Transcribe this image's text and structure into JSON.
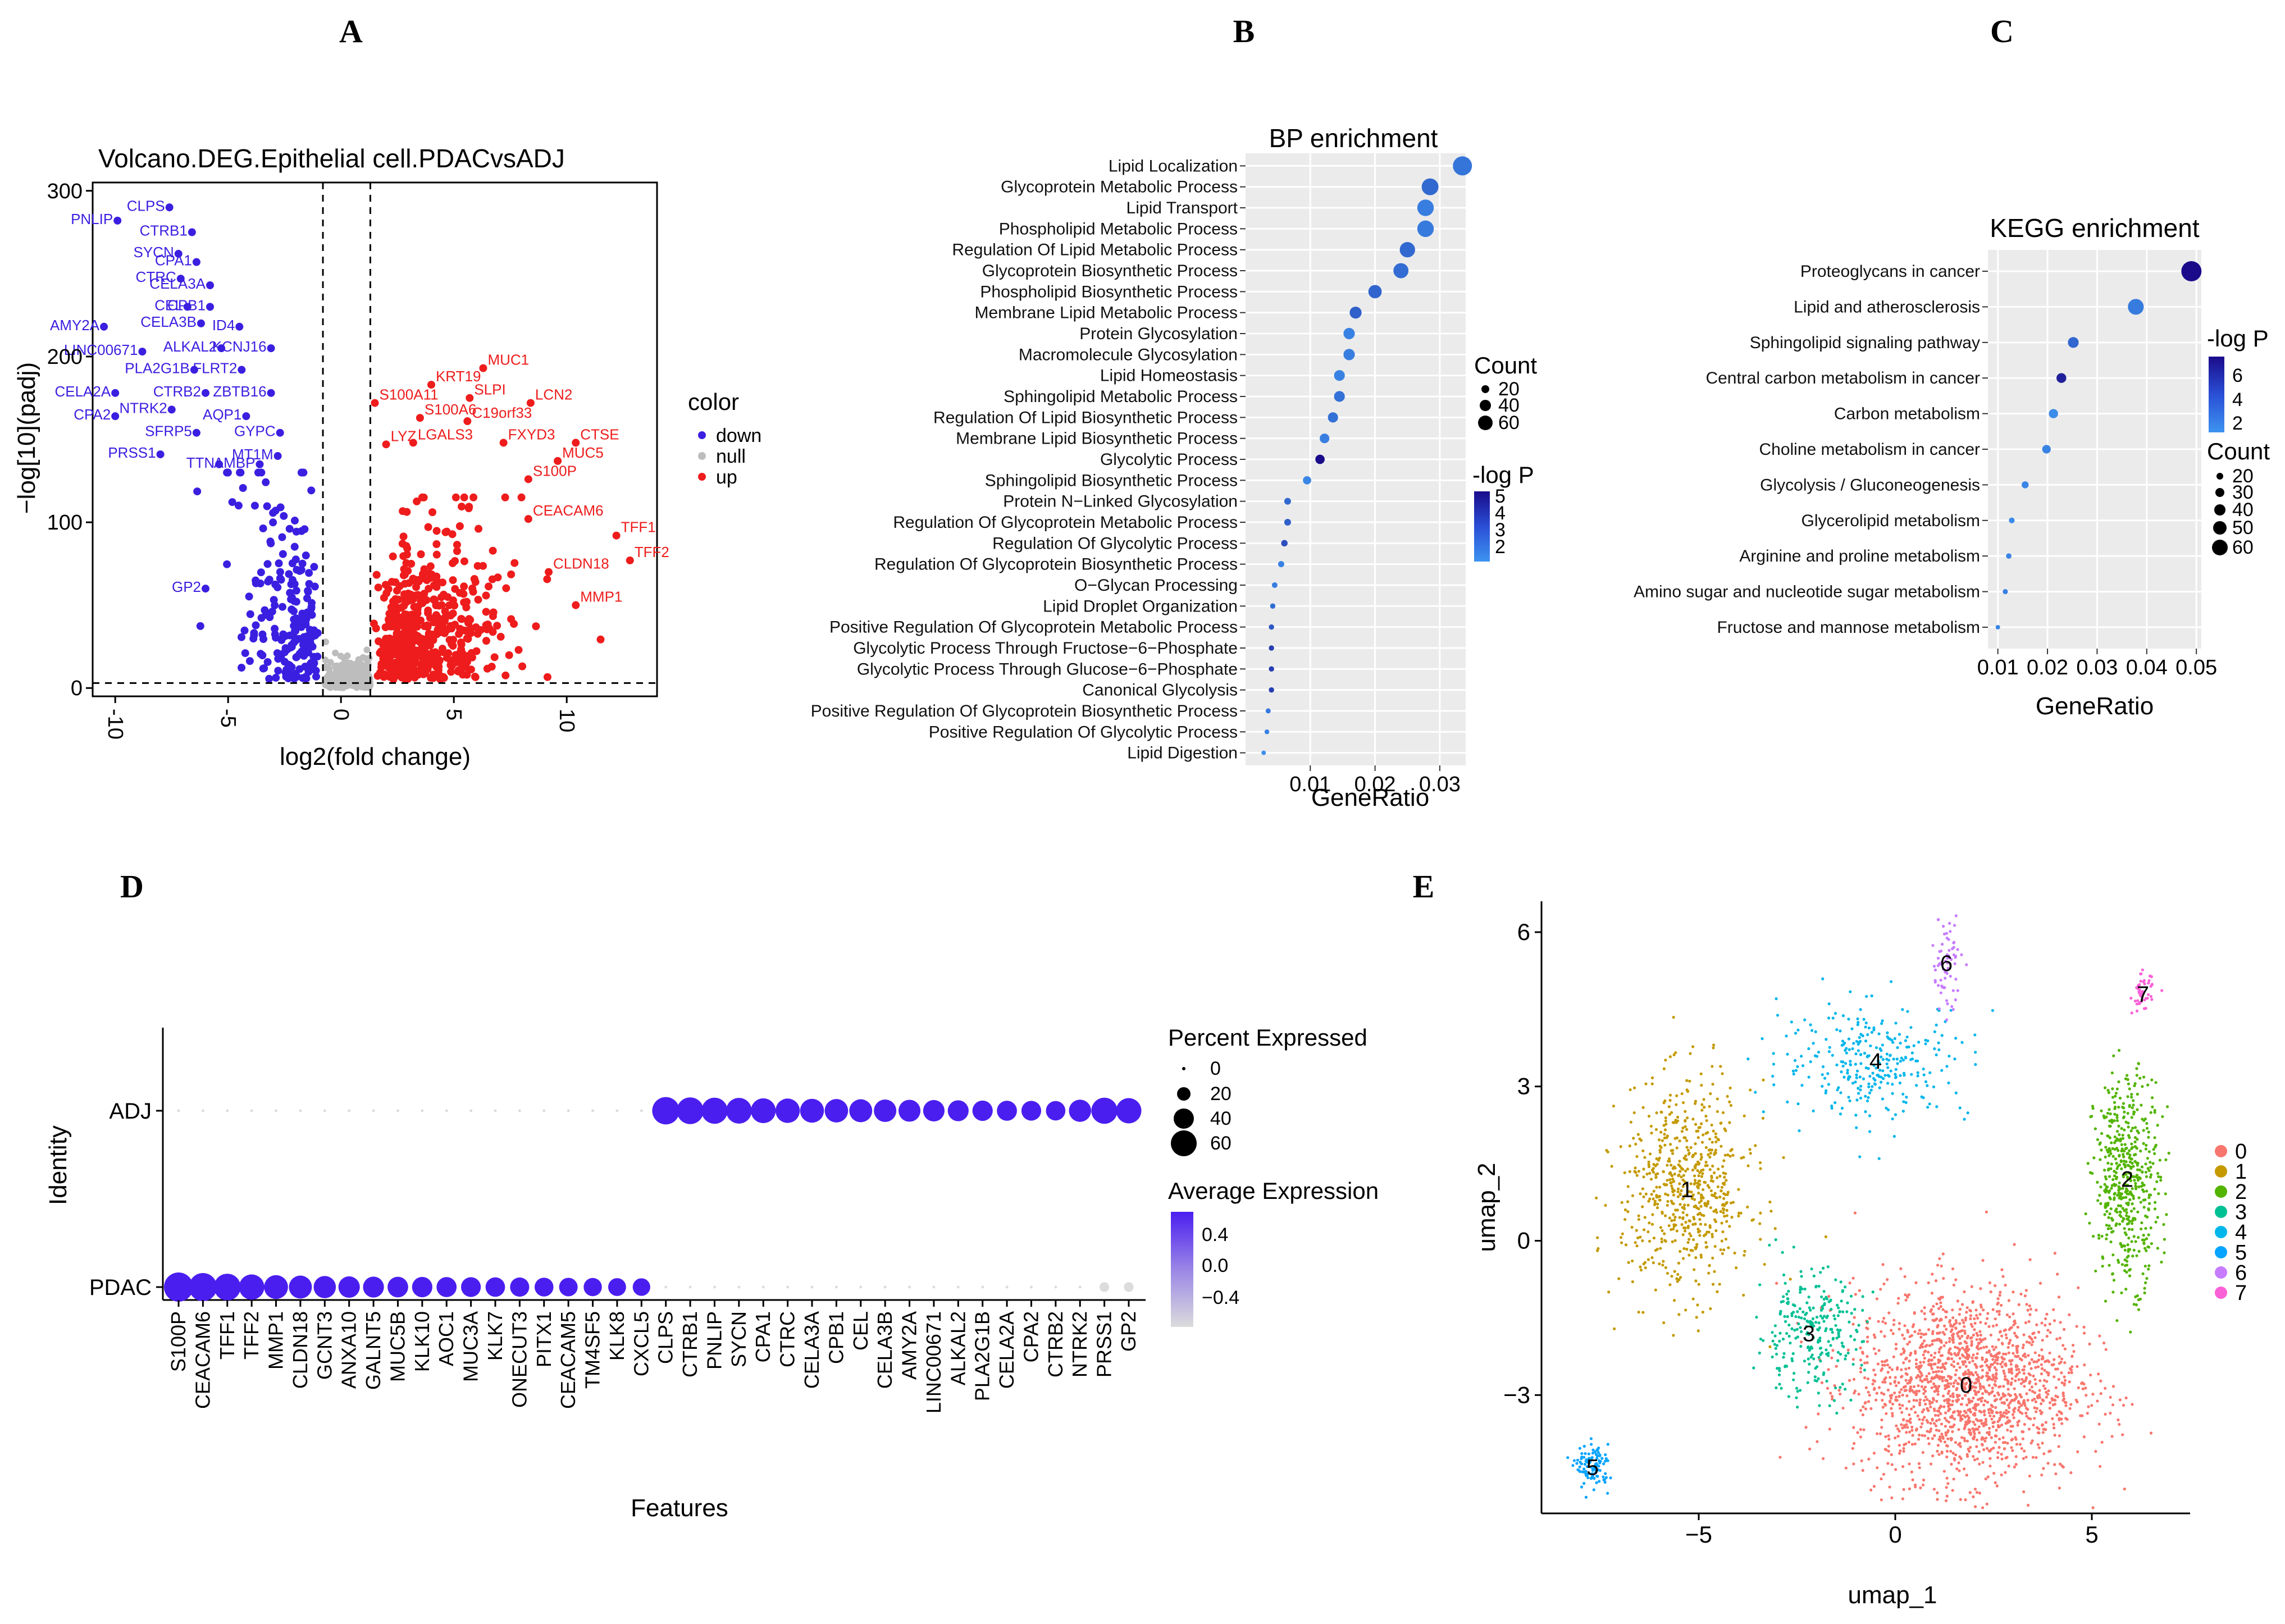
{
  "panels": {
    "A": {
      "letter": "A",
      "title": "Volcano.DEG.Epithelial cell.PDACvsADJ",
      "xlabel": "log2(fold change)",
      "ylabel": "−log[10](padj)",
      "legend_title": "color",
      "legend_items": [
        "down",
        "null",
        "up"
      ]
    },
    "B": {
      "letter": "B",
      "title": "BP enrichment",
      "xlabel": "GeneRatio",
      "count_title": "Count",
      "count_labels": [
        "20",
        "40",
        "60"
      ],
      "p_title": "-log P",
      "p_labels": [
        "5",
        "4",
        "3",
        "2"
      ]
    },
    "C": {
      "letter": "C",
      "title": "KEGG enrichment",
      "xlabel": "GeneRatio",
      "p_title": "-log P",
      "p_labels": [
        "6",
        "4",
        "2"
      ],
      "count_title": "Count",
      "count_labels": [
        "20",
        "30",
        "40",
        "50",
        "60"
      ]
    },
    "D": {
      "letter": "D",
      "xlabel": "Features",
      "ylabel": "Identity",
      "pct_title": "Percent Expressed",
      "pct_labels": [
        "0",
        "20",
        "40",
        "60"
      ],
      "avg_title": "Average Expression",
      "avg_labels": [
        "0.4",
        "0.0",
        "−0.4"
      ]
    },
    "E": {
      "letter": "E",
      "xlabel": "umap_1",
      "ylabel": "umap_2"
    }
  },
  "chart_data": [
    {
      "id": "A",
      "type": "scatter",
      "title": "Volcano.DEG.Epithelial cell.PDACvsADJ",
      "xlabel": "log2(fold change)",
      "ylabel": "−log[10](padj)",
      "xlim": [
        -11,
        14
      ],
      "ylim": [
        -5,
        305
      ],
      "xticks": [
        -10,
        -5,
        0,
        5,
        10
      ],
      "yticks": [
        0,
        100,
        200,
        300
      ],
      "thresholds": {
        "x": [
          -0.8,
          1.3
        ],
        "y": 3
      },
      "colors": {
        "down": "#3b1fe0",
        "null": "#bdbdbd",
        "up": "#ee1c1c"
      },
      "labeled_down": [
        {
          "gene": "CLPS",
          "x": -7.6,
          "y": 290
        },
        {
          "gene": "PNLIP",
          "x": -9.9,
          "y": 282
        },
        {
          "gene": "CTRB1",
          "x": -6.6,
          "y": 275
        },
        {
          "gene": "SYCN",
          "x": -7.2,
          "y": 262
        },
        {
          "gene": "CPA1",
          "x": -6.4,
          "y": 257
        },
        {
          "gene": "CTRC",
          "x": -7.1,
          "y": 247
        },
        {
          "gene": "CELA3A",
          "x": -5.8,
          "y": 243
        },
        {
          "gene": "CEL",
          "x": -6.8,
          "y": 230
        },
        {
          "gene": "CPB1",
          "x": -5.8,
          "y": 230
        },
        {
          "gene": "AMY2A",
          "x": -10.5,
          "y": 218
        },
        {
          "gene": "CELA3B",
          "x": -6.2,
          "y": 220
        },
        {
          "gene": "ID4",
          "x": -4.5,
          "y": 218
        },
        {
          "gene": "LINC00671",
          "x": -8.8,
          "y": 203
        },
        {
          "gene": "ALKAL2",
          "x": -5.3,
          "y": 205
        },
        {
          "gene": "KCNJ16",
          "x": -3.1,
          "y": 205
        },
        {
          "gene": "PLA2G1B",
          "x": -6.5,
          "y": 192
        },
        {
          "gene": "FLRT2",
          "x": -4.4,
          "y": 192
        },
        {
          "gene": "CELA2A",
          "x": -10.0,
          "y": 178
        },
        {
          "gene": "CTRB2",
          "x": -6.0,
          "y": 178
        },
        {
          "gene": "ZBTB16",
          "x": -3.1,
          "y": 178
        },
        {
          "gene": "CPA2",
          "x": -10.0,
          "y": 164
        },
        {
          "gene": "NTRK2",
          "x": -7.5,
          "y": 168
        },
        {
          "gene": "AQP1",
          "x": -4.2,
          "y": 164
        },
        {
          "gene": "GYPC",
          "x": -2.7,
          "y": 154
        },
        {
          "gene": "SFRP5",
          "x": -6.4,
          "y": 154
        },
        {
          "gene": "PRSS1",
          "x": -8.0,
          "y": 141
        },
        {
          "gene": "MT1M",
          "x": -2.8,
          "y": 140
        },
        {
          "gene": "TTN",
          "x": -5.4,
          "y": 135
        },
        {
          "gene": "AMBP",
          "x": -3.6,
          "y": 135
        },
        {
          "gene": "GP2",
          "x": -6.0,
          "y": 60
        }
      ],
      "labeled_up": [
        {
          "gene": "MUC1",
          "x": 6.3,
          "y": 193
        },
        {
          "gene": "KRT19",
          "x": 4.0,
          "y": 183
        },
        {
          "gene": "SLPI",
          "x": 5.7,
          "y": 175
        },
        {
          "gene": "LCN2",
          "x": 8.4,
          "y": 172
        },
        {
          "gene": "S100A11",
          "x": 1.5,
          "y": 172
        },
        {
          "gene": "S100A6",
          "x": 3.5,
          "y": 163
        },
        {
          "gene": "C19orf33",
          "x": 5.6,
          "y": 161
        },
        {
          "gene": "LGALS3",
          "x": 3.2,
          "y": 148
        },
        {
          "gene": "FXYD3",
          "x": 7.2,
          "y": 148
        },
        {
          "gene": "CTSE",
          "x": 10.4,
          "y": 148
        },
        {
          "gene": "LYZ",
          "x": 2.0,
          "y": 147
        },
        {
          "gene": "MUC5",
          "x": 9.6,
          "y": 137
        },
        {
          "gene": "S100P",
          "x": 8.3,
          "y": 126
        },
        {
          "gene": "CEACAM6",
          "x": 8.3,
          "y": 102
        },
        {
          "gene": "TFF1",
          "x": 12.2,
          "y": 92
        },
        {
          "gene": "TFF2",
          "x": 12.8,
          "y": 77
        },
        {
          "gene": "CLDN18",
          "x": 9.2,
          "y": 70
        },
        {
          "gene": "MMP1",
          "x": 10.4,
          "y": 50
        }
      ]
    },
    {
      "id": "B",
      "type": "scatter",
      "title": "BP enrichment",
      "xlabel": "GeneRatio",
      "xlim": [
        0.0,
        0.034
      ],
      "xticks": [
        0.01,
        0.02,
        0.03
      ],
      "terms": [
        "Lipid Localization",
        "Glycoprotein Metabolic Process",
        "Lipid Transport",
        "Phospholipid Metabolic Process",
        "Regulation Of Lipid Metabolic Process",
        "Glycoprotein Biosynthetic Process",
        "Phospholipid Biosynthetic Process",
        "Membrane Lipid Metabolic Process",
        "Protein Glycosylation",
        "Macromolecule Glycosylation",
        "Lipid Homeostasis",
        "Sphingolipid Metabolic Process",
        "Regulation Of Lipid Biosynthetic Process",
        "Membrane Lipid Biosynthetic Process",
        "Glycolytic Process",
        "Sphingolipid Biosynthetic Process",
        "Protein N−Linked Glycosylation",
        "Regulation Of Glycoprotein Metabolic Process",
        "Regulation Of Glycolytic Process",
        "Regulation Of Glycoprotein Biosynthetic Process",
        "O−Glycan Processing",
        "Lipid Droplet Organization",
        "Positive Regulation Of Glycoprotein Metabolic Process",
        "Glycolytic Process Through Fructose−6−Phosphate",
        "Glycolytic Process Through Glucose−6−Phosphate",
        "Canonical Glycolysis",
        "Positive Regulation Of Glycoprotein Biosynthetic Process",
        "Positive Regulation Of Glycolytic Process",
        "Lipid Digestion"
      ],
      "gene_ratio": [
        0.0335,
        0.0285,
        0.0278,
        0.0278,
        0.025,
        0.024,
        0.02,
        0.017,
        0.016,
        0.016,
        0.0145,
        0.0145,
        0.0135,
        0.0122,
        0.0115,
        0.0095,
        0.0065,
        0.0065,
        0.006,
        0.0055,
        0.0045,
        0.0042,
        0.004,
        0.004,
        0.004,
        0.004,
        0.0035,
        0.0033,
        0.0028
      ],
      "count": [
        58,
        50,
        49,
        49,
        45,
        44,
        38,
        33,
        31,
        31,
        29,
        29,
        27,
        25,
        24,
        20,
        15,
        15,
        14,
        13,
        11,
        10,
        10,
        10,
        10,
        10,
        9,
        8,
        7
      ],
      "neg_log_p": [
        2.7,
        3.0,
        2.5,
        2.6,
        3.0,
        2.9,
        3.1,
        3.2,
        2.4,
        2.5,
        2.4,
        2.8,
        2.8,
        2.5,
        5.2,
        2.3,
        3.0,
        3.2,
        3.6,
        2.4,
        2.5,
        2.9,
        3.4,
        4.0,
        4.0,
        4.0,
        2.6,
        2.4,
        2.1
      ]
    },
    {
      "id": "C",
      "type": "scatter",
      "title": "KEGG enrichment",
      "xlabel": "GeneRatio",
      "xlim": [
        0.008,
        0.051
      ],
      "xticks": [
        0.01,
        0.02,
        0.03,
        0.04,
        0.05
      ],
      "terms": [
        "Proteoglycans in cancer",
        "Lipid and atherosclerosis",
        "Sphingolipid signaling pathway",
        "Central carbon metabolism in cancer",
        "Carbon metabolism",
        "Choline metabolism in cancer",
        "Glycolysis / Gluconeogenesis",
        "Glycerolipid metabolism",
        "Arginine and proline metabolism",
        "Amino sugar and nucleotide sugar metabolism",
        "Fructose and mannose metabolism"
      ],
      "gene_ratio": [
        0.049,
        0.0378,
        0.0252,
        0.0228,
        0.0212,
        0.0198,
        0.0155,
        0.0128,
        0.0122,
        0.0115,
        0.01
      ],
      "count": [
        62,
        48,
        32,
        29,
        27,
        25,
        20,
        16,
        15,
        14,
        12
      ],
      "neg_log_p": [
        7.0,
        2.9,
        3.6,
        6.2,
        2.3,
        2.6,
        2.5,
        2.3,
        2.6,
        2.7,
        2.5
      ]
    },
    {
      "id": "D",
      "type": "scatter",
      "xlabel": "Features",
      "ylabel": "Identity",
      "identities": [
        "ADJ",
        "PDAC"
      ],
      "features": [
        "S100P",
        "CEACAM6",
        "TFF1",
        "TFF2",
        "MMP1",
        "CLDN18",
        "GCNT3",
        "ANXA10",
        "GALNT5",
        "MUC5B",
        "KLK10",
        "AOC1",
        "MUC3A",
        "KLK7",
        "ONECUT3",
        "PITX1",
        "CEACAM5",
        "TM4SF5",
        "KLK8",
        "CXCL5",
        "CLPS",
        "CTRB1",
        "PNLIP",
        "SYCN",
        "CPA1",
        "CTRC",
        "CELA3A",
        "CPB1",
        "CEL",
        "CELA3B",
        "AMY2A",
        "LINC00671",
        "ALKAL2",
        "PLA2G1B",
        "CELA2A",
        "CPA2",
        "CTRB2",
        "NTRK2",
        "PRSS1",
        "GP2"
      ],
      "series": [
        {
          "name": "ADJ",
          "pct": [
            1,
            1,
            1,
            1,
            1,
            1,
            1,
            1,
            1,
            1,
            1,
            1,
            1,
            1,
            1,
            1,
            1,
            1,
            1,
            1,
            58,
            55,
            52,
            50,
            46,
            44,
            42,
            40,
            38,
            36,
            34,
            32,
            30,
            28,
            27,
            26,
            25,
            35,
            52,
            48
          ],
          "avg": [
            -0.55,
            -0.55,
            -0.55,
            -0.55,
            -0.55,
            -0.55,
            -0.55,
            -0.55,
            -0.55,
            -0.55,
            -0.55,
            -0.55,
            -0.55,
            -0.55,
            -0.55,
            -0.55,
            -0.55,
            -0.55,
            -0.55,
            -0.55,
            0.5,
            0.5,
            0.5,
            0.5,
            0.5,
            0.5,
            0.5,
            0.5,
            0.5,
            0.5,
            0.5,
            0.5,
            0.5,
            0.5,
            0.5,
            0.5,
            0.5,
            0.5,
            0.5,
            0.5
          ]
        },
        {
          "name": "PDAC",
          "pct": [
            68,
            62,
            55,
            48,
            42,
            38,
            35,
            32,
            30,
            29,
            28,
            27,
            26,
            25,
            24,
            23,
            22,
            21,
            20,
            19,
            1,
            1,
            1,
            1,
            1,
            1,
            1,
            1,
            1,
            1,
            1,
            1,
            1,
            1,
            1,
            1,
            1,
            1,
            3,
            3
          ],
          "avg": [
            0.5,
            0.5,
            0.5,
            0.5,
            0.5,
            0.5,
            0.5,
            0.5,
            0.5,
            0.5,
            0.5,
            0.5,
            0.5,
            0.5,
            0.5,
            0.5,
            0.5,
            0.5,
            0.5,
            0.5,
            -0.55,
            -0.55,
            -0.55,
            -0.55,
            -0.55,
            -0.55,
            -0.55,
            -0.55,
            -0.55,
            -0.55,
            -0.55,
            -0.55,
            -0.55,
            -0.55,
            -0.55,
            -0.55,
            -0.55,
            -0.55,
            -0.55,
            -0.55
          ]
        }
      ],
      "pct_scale": [
        0,
        20,
        40,
        60
      ],
      "avg_scale": [
        -0.5,
        0.5
      ]
    },
    {
      "id": "E",
      "type": "scatter",
      "xlabel": "umap_1",
      "ylabel": "umap_2",
      "xticks": [
        -5,
        0,
        5
      ],
      "yticks": [
        -3,
        0,
        3,
        6
      ],
      "xlim": [
        -9,
        7.5
      ],
      "ylim": [
        -5.3,
        6.6
      ],
      "clusters": [
        {
          "id": "0",
          "color": "#f8766d",
          "center": [
            1.8,
            -2.8
          ]
        },
        {
          "id": "1",
          "color": "#c49a00",
          "center": [
            -5.3,
            1.0
          ]
        },
        {
          "id": "2",
          "color": "#53b400",
          "center": [
            5.9,
            1.2
          ]
        },
        {
          "id": "3",
          "color": "#00c094",
          "center": [
            -2.2,
            -1.8
          ]
        },
        {
          "id": "4",
          "color": "#00b6eb",
          "center": [
            -0.5,
            3.5
          ]
        },
        {
          "id": "5",
          "color": "#06a4ff",
          "center": [
            -7.7,
            -4.4
          ]
        },
        {
          "id": "6",
          "color": "#c77cff",
          "center": [
            1.3,
            5.4
          ]
        },
        {
          "id": "7",
          "color": "#fb61d7",
          "center": [
            6.3,
            4.8
          ]
        }
      ]
    }
  ]
}
